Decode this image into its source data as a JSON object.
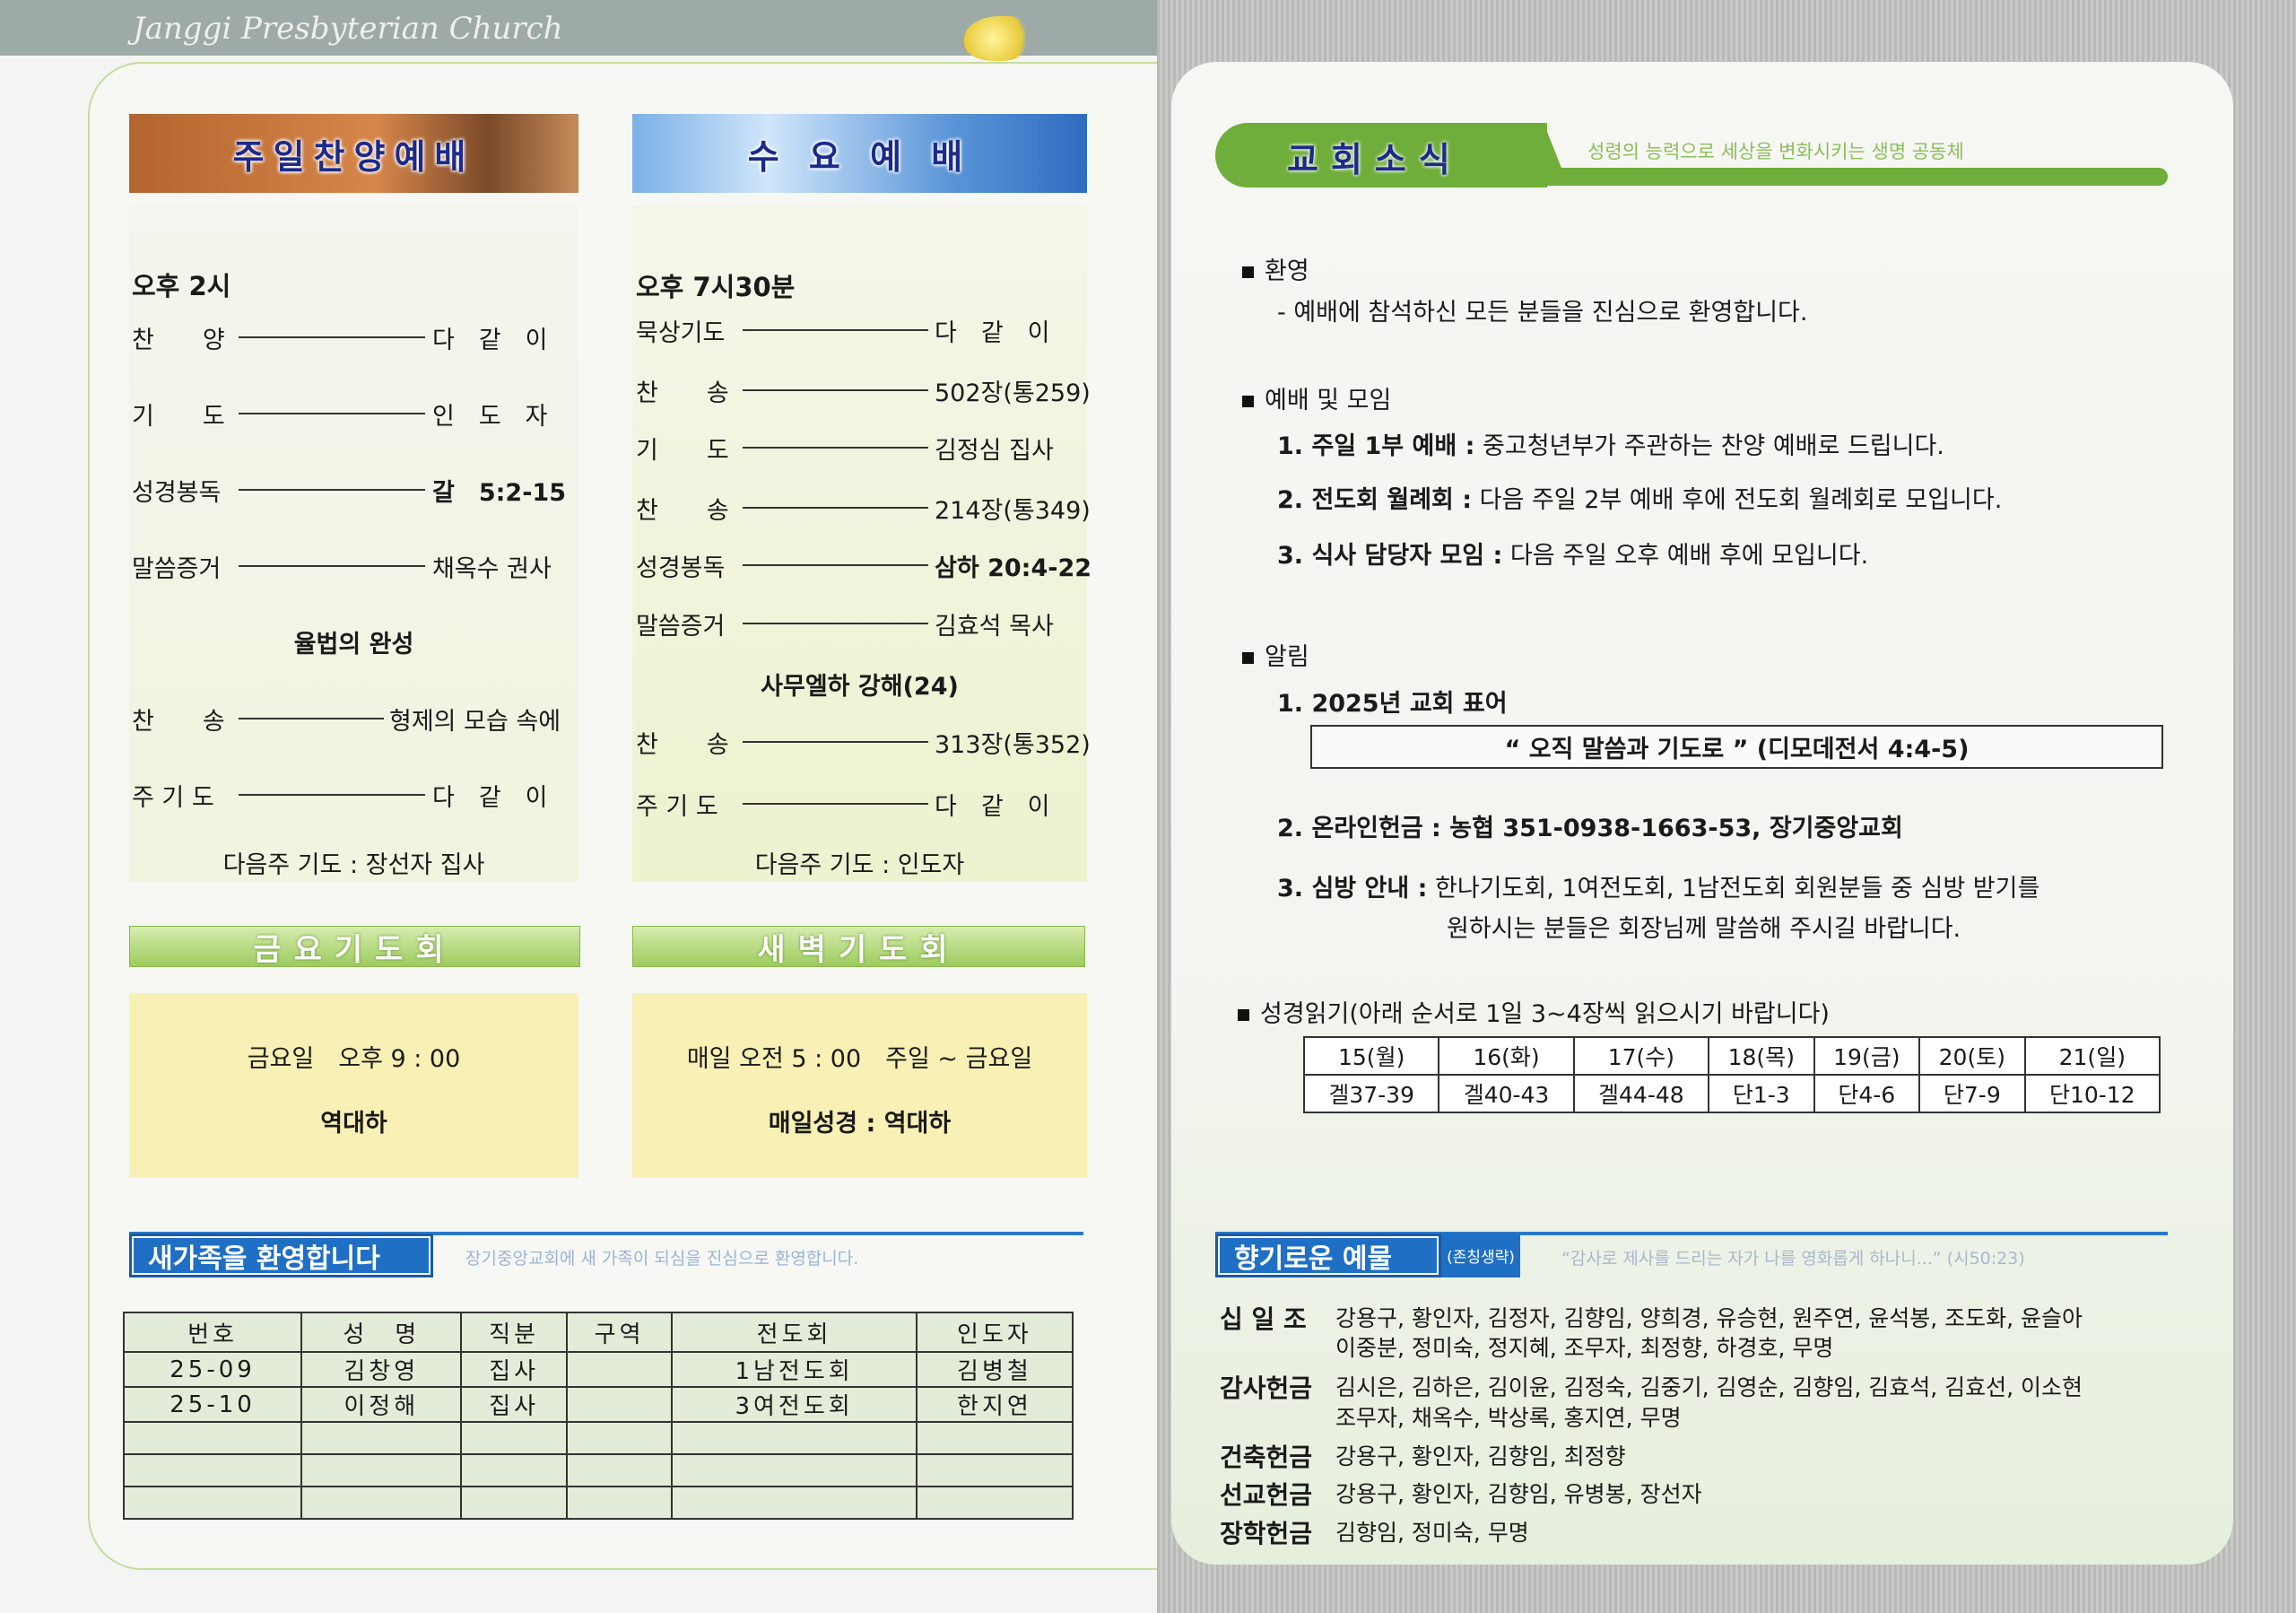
{
  "header": {
    "brand": "Janggi Presbyterian Church"
  },
  "sunday": {
    "title": "주일찬양예배",
    "time": "오후 2시",
    "items": [
      {
        "label": "찬　　양",
        "value": "다　같　이",
        "bold": false
      },
      {
        "label": "기　　도",
        "value": "인　도　자",
        "bold": false
      },
      {
        "label": "성경봉독",
        "value": "갈　5:2-15",
        "bold": true
      },
      {
        "label": "말씀증거",
        "value": "채옥수 권사",
        "bold": false
      }
    ],
    "sermon": "율법의 완성",
    "after": [
      {
        "label": "찬　　송",
        "value": "형제의 모습 속에"
      },
      {
        "label": "주 기 도",
        "value": "다　같　이"
      }
    ],
    "next_prayer": "다음주 기도 : 장선자 집사"
  },
  "wednesday": {
    "title": "수 요 예 배",
    "time": "오후 7시30분",
    "items": [
      {
        "label": "묵상기도",
        "value": "다　같　이",
        "bold": false
      },
      {
        "label": "찬　　송",
        "value": "502장(통259)",
        "bold": false
      },
      {
        "label": "기　　도",
        "value": "김정심 집사",
        "bold": false
      },
      {
        "label": "찬　　송",
        "value": "214장(통349)",
        "bold": false
      },
      {
        "label": "성경봉독",
        "value": "삼하 20:4-22",
        "bold": true
      },
      {
        "label": "말씀증거",
        "value": "김효석 목사",
        "bold": false
      }
    ],
    "sermon": "사무엘하 강해(24)",
    "after": [
      {
        "label": "찬　　송",
        "value": "313장(통352)"
      },
      {
        "label": "주 기 도",
        "value": "다　같　이"
      }
    ],
    "next_prayer": "다음주 기도 : 인도자"
  },
  "friday": {
    "title": "금요기도회",
    "time": "금요일　오후 9 : 00",
    "leader": "역대하"
  },
  "dawn": {
    "title": "새벽기도회",
    "time": "매일 오전 5 : 00　주일 ~ 금요일",
    "leader": "매일성경 : 역대하"
  },
  "new_family": {
    "title": "새가족을 환영합니다",
    "subtitle": "장기중앙교회에 새 가족이 되심을 진심으로 환영합니다.",
    "columns": [
      "번호",
      "성　명",
      "직분",
      "구역",
      "전도회",
      "인도자"
    ],
    "rows": [
      [
        "25-09",
        "김창영",
        "집사",
        "",
        "1남전도회",
        "김병철"
      ],
      [
        "25-10",
        "이정해",
        "집사",
        "",
        "3여전도회",
        "한지연"
      ],
      [
        "",
        "",
        "",
        "",
        "",
        ""
      ],
      [
        "",
        "",
        "",
        "",
        "",
        ""
      ],
      [
        "",
        "",
        "",
        "",
        "",
        ""
      ]
    ]
  },
  "news": {
    "title": "교회소식",
    "subtitle": "성령의 능력으로 세상을 변화시키는 생명 공동체",
    "welcome": {
      "heading": "환영",
      "text": "- 예배에 참석하신 모든 분들을 진심으로 환영합니다."
    },
    "meetings": {
      "heading": "예배 및 모임",
      "items": [
        {
          "label": "1. 주일 1부 예배 :",
          "text": " 중고청년부가 주관하는 찬양 예배로 드립니다."
        },
        {
          "label": "2. 전도회 월례회 :",
          "text": " 다음 주일 2부 예배 후에 전도회 월례회로 모입니다."
        },
        {
          "label": "3. 식사 담당자 모임 :",
          "text": " 다음 주일 오후 예배 후에 모입니다."
        }
      ]
    },
    "notices": {
      "heading": "알림",
      "motto_label": "1. 2025년 교회 표어",
      "motto": "“ 오직 말씀과 기도로 ” (디모데전서 4:4-5)",
      "online": "2. 온라인헌금 : 농협 351-0938-1663-53, 장기중앙교회",
      "visit_label": "3. 심방 안내 :",
      "visit_text": " 한나기도회, 1여전도회, 1남전도회 회원분들 중 심방 받기를",
      "visit_text2": "원하시는 분들은 회장님께 말씀해 주시길 바랍니다."
    },
    "reading": {
      "heading": "성경읽기(아래 순서로 1일 3~4장씩 읽으시기 바랍니다)",
      "days": [
        "15(월)",
        "16(화)",
        "17(수)",
        "18(목)",
        "19(금)",
        "20(토)",
        "21(일)"
      ],
      "chapters": [
        "겔37-39",
        "겔40-43",
        "겔44-48",
        "단1-3",
        "단4-6",
        "단7-9",
        "단10-12"
      ]
    }
  },
  "offerings": {
    "title": "향기로운 예물",
    "note": "(존칭생략)",
    "verse": "“감사로 제사를 드리는 자가 나를 영화롭게 하나니...” (시50:23)",
    "groups": [
      {
        "label": "십 일 조",
        "lines": [
          "강용구, 황인자, 김정자, 김향임, 양희경, 유승현, 원주연, 윤석봉, 조도화, 윤슬아",
          "이중분, 정미숙, 정지혜, 조무자, 최정향, 하경호, 무명"
        ]
      },
      {
        "label": "감사헌금",
        "lines": [
          "김시은, 김하은, 김이윤, 김정숙, 김중기, 김영순, 김향임, 김효석, 김효선, 이소현",
          "조무자, 채옥수, 박상록, 홍지연, 무명"
        ]
      },
      {
        "label": "건축헌금",
        "lines": [
          "강용구, 황인자, 김향임, 최정향"
        ]
      },
      {
        "label": "선교헌금",
        "lines": [
          "강용구, 황인자, 김향임, 유병봉, 장선자"
        ]
      },
      {
        "label": "장학헌금",
        "lines": [
          "김향임, 정미숙, 무명"
        ]
      }
    ]
  }
}
